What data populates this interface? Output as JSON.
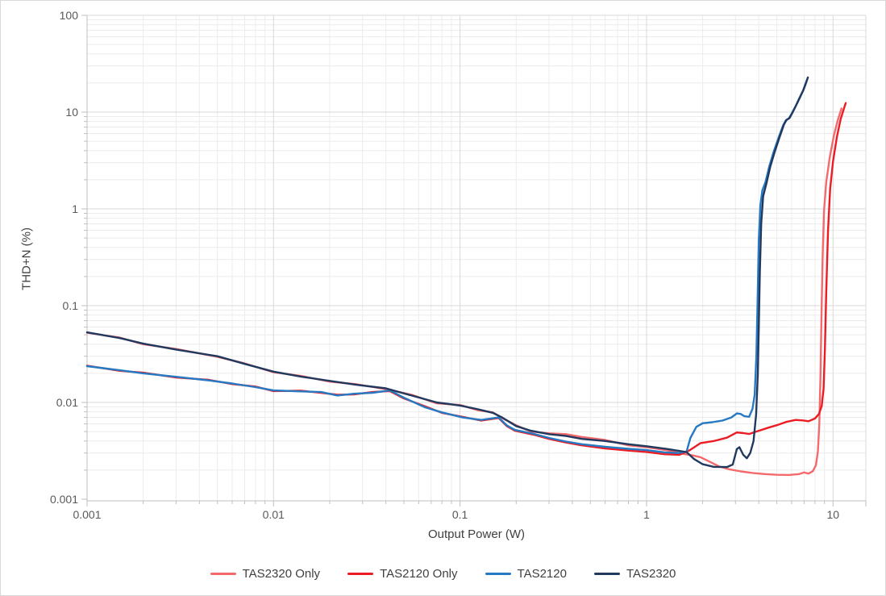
{
  "window": {
    "background": "#FFFFFF",
    "border_color": "#D9D9D9"
  },
  "chart_data": {
    "type": "line",
    "title": "",
    "xlabel": "Output Power (W)",
    "ylabel": "THD+N (%)",
    "x_scale": "log",
    "y_scale": "log",
    "xlim": [
      0.001,
      15
    ],
    "ylim": [
      0.001,
      100
    ],
    "x_tick_values": [
      0.001,
      0.01,
      0.1,
      1,
      10
    ],
    "x_tick_labels": [
      "0.001",
      "0.01",
      "0.1",
      "1",
      "10"
    ],
    "y_tick_values": [
      0.001,
      0.01,
      0.1,
      1,
      10,
      100
    ],
    "y_tick_labels": [
      "0.001",
      "0.01",
      "0.1",
      "1",
      "10",
      "100"
    ],
    "grid": {
      "major": true,
      "minor": true,
      "major_color": "#D8D8D8",
      "minor_color": "#ECECEC"
    },
    "axis_color": "#BFBFBF",
    "tick_label_color": "#595959",
    "axis_title_color": "#404040",
    "legend_position": "bottom",
    "series": [
      {
        "name": "TAS2320 Only",
        "color": "#F4696C",
        "points": [
          [
            0.001,
            0.0525
          ],
          [
            0.0015,
            0.0468
          ],
          [
            0.002,
            0.04
          ],
          [
            0.003,
            0.0357
          ],
          [
            0.005,
            0.0296
          ],
          [
            0.007,
            0.0253
          ],
          [
            0.01,
            0.0205
          ],
          [
            0.014,
            0.0188
          ],
          [
            0.02,
            0.0164
          ],
          [
            0.028,
            0.0154
          ],
          [
            0.04,
            0.0137
          ],
          [
            0.055,
            0.012
          ],
          [
            0.075,
            0.0098
          ],
          [
            0.1,
            0.0094
          ],
          [
            0.125,
            0.0083
          ],
          [
            0.15,
            0.0079
          ],
          [
            0.168,
            0.0069
          ],
          [
            0.2,
            0.0058
          ],
          [
            0.24,
            0.005
          ],
          [
            0.3,
            0.0048
          ],
          [
            0.37,
            0.0047
          ],
          [
            0.45,
            0.0044
          ],
          [
            0.6,
            0.0041
          ],
          [
            0.8,
            0.0036
          ],
          [
            1.0,
            0.00345
          ],
          [
            1.3,
            0.0032
          ],
          [
            1.55,
            0.00295
          ],
          [
            1.75,
            0.00285
          ],
          [
            1.95,
            0.00272
          ],
          [
            2.2,
            0.00242
          ],
          [
            2.45,
            0.00218
          ],
          [
            2.8,
            0.00203
          ],
          [
            3.2,
            0.00194
          ],
          [
            3.7,
            0.00187
          ],
          [
            4.3,
            0.00182
          ],
          [
            5.0,
            0.00179
          ],
          [
            5.8,
            0.00178
          ],
          [
            6.6,
            0.00182
          ],
          [
            7.0,
            0.00189
          ],
          [
            7.4,
            0.00184
          ],
          [
            7.8,
            0.00195
          ],
          [
            8.1,
            0.00225
          ],
          [
            8.3,
            0.0031
          ],
          [
            8.45,
            0.006
          ],
          [
            8.57,
            0.02
          ],
          [
            8.68,
            0.08
          ],
          [
            8.8,
            0.32
          ],
          [
            8.95,
            0.95
          ],
          [
            9.2,
            1.9
          ],
          [
            9.6,
            3.4
          ],
          [
            10.1,
            5.7
          ],
          [
            10.6,
            8.2
          ],
          [
            11.1,
            10.9
          ]
        ]
      },
      {
        "name": "TAS2120 Only",
        "color": "#EC1C24",
        "points": [
          [
            0.001,
            0.024
          ],
          [
            0.0015,
            0.0212
          ],
          [
            0.002,
            0.0203
          ],
          [
            0.003,
            0.0181
          ],
          [
            0.0045,
            0.0171
          ],
          [
            0.006,
            0.0155
          ],
          [
            0.008,
            0.0146
          ],
          [
            0.01,
            0.0131
          ],
          [
            0.014,
            0.0132
          ],
          [
            0.018,
            0.0126
          ],
          [
            0.022,
            0.012
          ],
          [
            0.027,
            0.0121
          ],
          [
            0.034,
            0.0128
          ],
          [
            0.042,
            0.0131
          ],
          [
            0.05,
            0.011
          ],
          [
            0.065,
            0.0091
          ],
          [
            0.08,
            0.0078
          ],
          [
            0.103,
            0.0071
          ],
          [
            0.13,
            0.0065
          ],
          [
            0.161,
            0.0069
          ],
          [
            0.178,
            0.0057
          ],
          [
            0.197,
            0.0051
          ],
          [
            0.247,
            0.00465
          ],
          [
            0.3,
            0.0042
          ],
          [
            0.37,
            0.00385
          ],
          [
            0.45,
            0.0036
          ],
          [
            0.6,
            0.00335
          ],
          [
            0.8,
            0.00318
          ],
          [
            1.0,
            0.00308
          ],
          [
            1.25,
            0.00292
          ],
          [
            1.5,
            0.00288
          ],
          [
            1.7,
            0.0032
          ],
          [
            1.95,
            0.0038
          ],
          [
            2.3,
            0.004
          ],
          [
            2.7,
            0.00432
          ],
          [
            3.05,
            0.0049
          ],
          [
            3.3,
            0.00482
          ],
          [
            3.55,
            0.00472
          ],
          [
            4.0,
            0.0051
          ],
          [
            4.5,
            0.00548
          ],
          [
            5.0,
            0.00582
          ],
          [
            5.6,
            0.00628
          ],
          [
            6.3,
            0.0066
          ],
          [
            6.9,
            0.00652
          ],
          [
            7.4,
            0.0064
          ],
          [
            8.0,
            0.00682
          ],
          [
            8.4,
            0.0076
          ],
          [
            8.7,
            0.0092
          ],
          [
            8.9,
            0.014
          ],
          [
            9.05,
            0.035
          ],
          [
            9.2,
            0.14
          ],
          [
            9.4,
            0.6
          ],
          [
            9.65,
            1.6
          ],
          [
            10.0,
            3.1
          ],
          [
            10.5,
            5.6
          ],
          [
            11.0,
            8.5
          ],
          [
            11.4,
            10.6
          ],
          [
            11.7,
            12.4
          ]
        ]
      },
      {
        "name": "TAS2120",
        "color": "#2679C2",
        "points": [
          [
            0.001,
            0.0237
          ],
          [
            0.0015,
            0.0215
          ],
          [
            0.002,
            0.02
          ],
          [
            0.003,
            0.0184
          ],
          [
            0.0045,
            0.0169
          ],
          [
            0.006,
            0.0157
          ],
          [
            0.008,
            0.0144
          ],
          [
            0.01,
            0.0133
          ],
          [
            0.014,
            0.013
          ],
          [
            0.018,
            0.0128
          ],
          [
            0.022,
            0.0118
          ],
          [
            0.027,
            0.0123
          ],
          [
            0.034,
            0.0126
          ],
          [
            0.042,
            0.0133
          ],
          [
            0.05,
            0.0112
          ],
          [
            0.065,
            0.0089
          ],
          [
            0.08,
            0.0079
          ],
          [
            0.103,
            0.007
          ],
          [
            0.13,
            0.0066
          ],
          [
            0.161,
            0.007
          ],
          [
            0.178,
            0.0058
          ],
          [
            0.197,
            0.0052
          ],
          [
            0.247,
            0.00475
          ],
          [
            0.3,
            0.0043
          ],
          [
            0.37,
            0.00394
          ],
          [
            0.45,
            0.0037
          ],
          [
            0.6,
            0.00348
          ],
          [
            0.8,
            0.00332
          ],
          [
            1.0,
            0.00322
          ],
          [
            1.25,
            0.00305
          ],
          [
            1.48,
            0.003
          ],
          [
            1.64,
            0.0031
          ],
          [
            1.72,
            0.0043
          ],
          [
            1.85,
            0.0056
          ],
          [
            2.0,
            0.0061
          ],
          [
            2.25,
            0.00625
          ],
          [
            2.55,
            0.0065
          ],
          [
            2.85,
            0.007
          ],
          [
            3.05,
            0.0077
          ],
          [
            3.2,
            0.0076
          ],
          [
            3.35,
            0.0072
          ],
          [
            3.55,
            0.0071
          ],
          [
            3.7,
            0.0086
          ],
          [
            3.8,
            0.012
          ],
          [
            3.88,
            0.03
          ],
          [
            3.94,
            0.11
          ],
          [
            4.0,
            0.48
          ],
          [
            4.08,
            1.1
          ],
          [
            4.18,
            1.55
          ],
          [
            4.35,
            1.9
          ],
          [
            4.55,
            2.75
          ],
          [
            4.8,
            3.85
          ],
          [
            5.1,
            5.4
          ],
          [
            5.4,
            7.3
          ],
          [
            5.58,
            8.2
          ],
          [
            5.8,
            8.6
          ],
          [
            6.0,
            9.6
          ],
          [
            6.3,
            11.5
          ],
          [
            6.6,
            13.9
          ],
          [
            6.9,
            16.6
          ],
          [
            7.1,
            19.4
          ],
          [
            7.27,
            21.8
          ]
        ]
      },
      {
        "name": "TAS2320",
        "color": "#21395F",
        "points": [
          [
            0.001,
            0.053
          ],
          [
            0.0015,
            0.0462
          ],
          [
            0.002,
            0.0405
          ],
          [
            0.003,
            0.0352
          ],
          [
            0.005,
            0.03
          ],
          [
            0.007,
            0.025
          ],
          [
            0.01,
            0.0208
          ],
          [
            0.014,
            0.0185
          ],
          [
            0.02,
            0.0167
          ],
          [
            0.028,
            0.0152
          ],
          [
            0.04,
            0.014
          ],
          [
            0.055,
            0.0118
          ],
          [
            0.075,
            0.01
          ],
          [
            0.1,
            0.0093
          ],
          [
            0.125,
            0.0085
          ],
          [
            0.15,
            0.0078
          ],
          [
            0.168,
            0.007
          ],
          [
            0.2,
            0.0057
          ],
          [
            0.24,
            0.0051
          ],
          [
            0.3,
            0.0047
          ],
          [
            0.37,
            0.0045
          ],
          [
            0.45,
            0.0042
          ],
          [
            0.6,
            0.004
          ],
          [
            0.8,
            0.0037
          ],
          [
            1.0,
            0.00353
          ],
          [
            1.3,
            0.0033
          ],
          [
            1.64,
            0.00307
          ],
          [
            1.8,
            0.0026
          ],
          [
            2.0,
            0.0023
          ],
          [
            2.3,
            0.00216
          ],
          [
            2.7,
            0.00215
          ],
          [
            2.9,
            0.00228
          ],
          [
            3.05,
            0.0033
          ],
          [
            3.15,
            0.00345
          ],
          [
            3.3,
            0.00288
          ],
          [
            3.45,
            0.00265
          ],
          [
            3.6,
            0.003
          ],
          [
            3.75,
            0.004
          ],
          [
            3.87,
            0.0075
          ],
          [
            3.95,
            0.02
          ],
          [
            4.0,
            0.06
          ],
          [
            4.05,
            0.22
          ],
          [
            4.12,
            0.7
          ],
          [
            4.22,
            1.35
          ],
          [
            4.4,
            1.85
          ],
          [
            4.6,
            2.7
          ],
          [
            4.85,
            3.8
          ],
          [
            5.15,
            5.4
          ],
          [
            5.45,
            7.4
          ],
          [
            5.63,
            8.3
          ],
          [
            5.85,
            8.7
          ],
          [
            6.05,
            9.8
          ],
          [
            6.35,
            11.8
          ],
          [
            6.65,
            14.2
          ],
          [
            6.95,
            17.0
          ],
          [
            7.15,
            19.8
          ],
          [
            7.33,
            22.8
          ]
        ]
      }
    ]
  }
}
